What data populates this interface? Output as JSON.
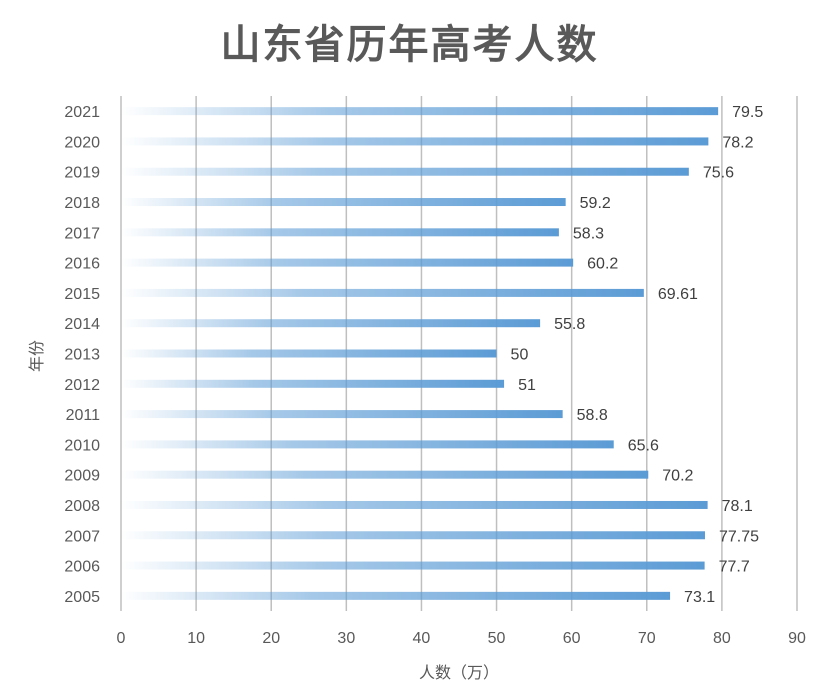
{
  "chart_data": {
    "type": "bar",
    "orientation": "horizontal",
    "title": "山东省历年高考人数",
    "xlabel": "人数（万）",
    "ylabel": "年份",
    "xlim": [
      0,
      90
    ],
    "xticks": [
      0,
      10,
      20,
      30,
      40,
      50,
      60,
      70,
      80,
      90
    ],
    "grid": "vertical",
    "legend": "none",
    "bar_color": "#5B9BD5",
    "categories": [
      "2005",
      "2006",
      "2007",
      "2008",
      "2009",
      "2010",
      "2011",
      "2012",
      "2013",
      "2014",
      "2015",
      "2016",
      "2017",
      "2018",
      "2019",
      "2020",
      "2021"
    ],
    "values": [
      73.1,
      77.7,
      77.75,
      78.1,
      70.2,
      65.6,
      58.8,
      51,
      50,
      55.8,
      69.61,
      60.2,
      58.3,
      59.2,
      75.6,
      78.2,
      79.5
    ],
    "labels": [
      "73.1",
      "77.7",
      "77.75",
      "78.1",
      "70.2",
      "65.6",
      "58.8",
      "51",
      "50",
      "55.8",
      "69.61",
      "60.2",
      "58.3",
      "59.2",
      "75.6",
      "78.2",
      "79.5"
    ]
  }
}
